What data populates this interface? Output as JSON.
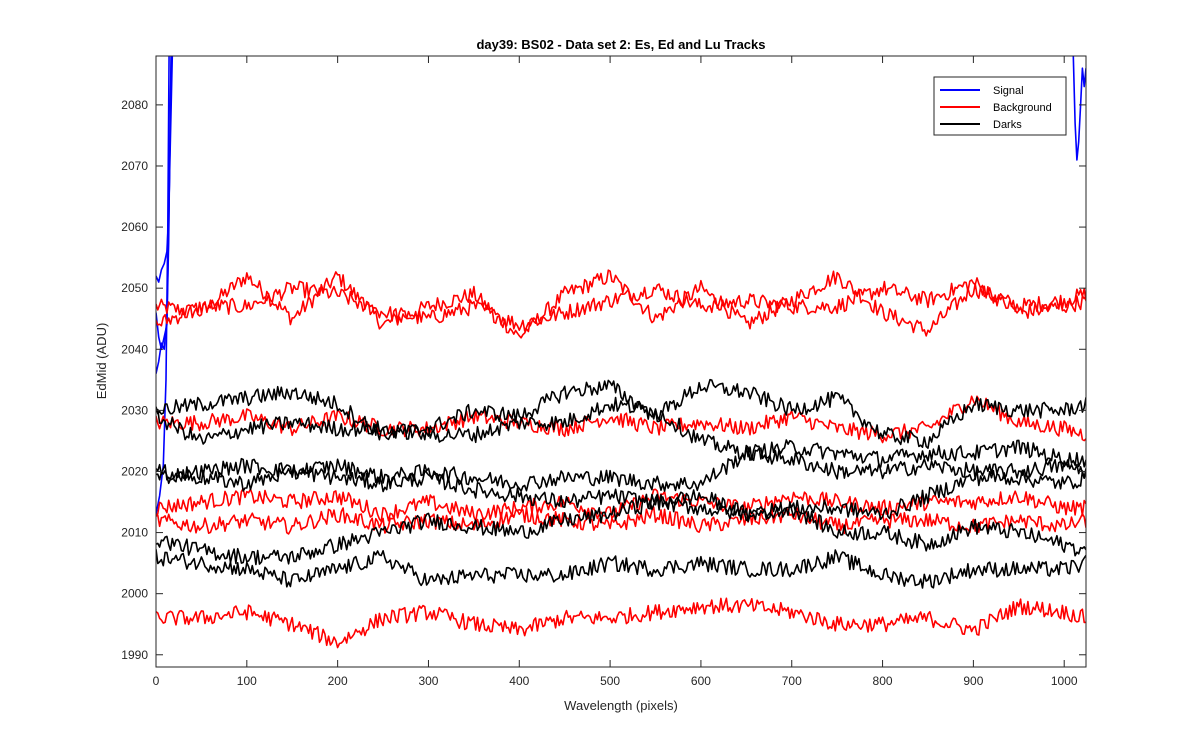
{
  "chart_data": {
    "type": "line",
    "title": "day39: BS02 - Data set 2: Es, Ed and Lu Tracks",
    "xlabel": "Wavelength (pixels)",
    "ylabel": "EdMid (ADU)",
    "xlim": [
      0,
      1024
    ],
    "ylim": [
      1988,
      2088
    ],
    "x_ticks": [
      0,
      100,
      200,
      300,
      400,
      500,
      600,
      700,
      800,
      900,
      1000
    ],
    "y_ticks": [
      1990,
      2000,
      2010,
      2020,
      2030,
      2040,
      2050,
      2060,
      2070,
      2080
    ],
    "grid": false,
    "legend_position": "top-right",
    "legend": [
      {
        "label": "Signal",
        "color": "#0000ff"
      },
      {
        "label": "Background",
        "color": "#ff0000"
      },
      {
        "label": "Darks",
        "color": "#000000"
      }
    ],
    "series": [
      {
        "legend_group": "Signal",
        "color": "#0000ff",
        "x": [
          0,
          3,
          6,
          9,
          12,
          14,
          16,
          18,
          20
        ],
        "y": [
          2052,
          2051,
          2053,
          2054,
          2056,
          2062,
          2075,
          2088,
          2100
        ]
      },
      {
        "legend_group": "Signal",
        "color": "#0000ff",
        "x": [
          0,
          3,
          6,
          9,
          12,
          14,
          16,
          18
        ],
        "y": [
          2036,
          2038,
          2041,
          2040,
          2045,
          2060,
          2080,
          2100
        ]
      },
      {
        "legend_group": "Signal",
        "color": "#0000ff",
        "x": [
          0,
          3,
          6,
          9,
          12,
          14,
          16,
          18
        ],
        "y": [
          2046,
          2042,
          2040,
          2042,
          2044,
          2058,
          2082,
          2100
        ]
      },
      {
        "legend_group": "Signal",
        "color": "#0000ff",
        "x": [
          0,
          4,
          8,
          11,
          13,
          15
        ],
        "y": [
          2013,
          2016,
          2021,
          2035,
          2060,
          2100
        ]
      },
      {
        "legend_group": "Signal",
        "color": "#0000ff",
        "x": [
          1008,
          1010,
          1012,
          1014,
          1016,
          1018,
          1020,
          1022,
          1024
        ],
        "y": [
          2100,
          2088,
          2077,
          2071,
          2074,
          2080,
          2086,
          2083,
          2086
        ]
      },
      {
        "legend_group": "Background",
        "color": "#ff0000",
        "x": [
          0,
          50,
          100,
          150,
          200,
          250,
          300,
          350,
          400,
          450,
          500,
          550,
          600,
          650,
          700,
          750,
          800,
          850,
          900,
          950,
          1000,
          1024
        ],
        "y": [
          2047,
          2046,
          2052,
          2045,
          2052,
          2044,
          2047,
          2049,
          2042,
          2049,
          2052,
          2045,
          2050,
          2044,
          2048,
          2052,
          2046,
          2043,
          2050,
          2047,
          2048,
          2049
        ]
      },
      {
        "legend_group": "Background",
        "color": "#ff0000",
        "x": [
          0,
          50,
          100,
          150,
          200,
          250,
          300,
          350,
          400,
          450,
          500,
          550,
          600,
          650,
          700,
          750,
          800,
          850,
          900,
          950,
          1000,
          1024
        ],
        "y": [
          2044,
          2047,
          2047,
          2050,
          2049,
          2046,
          2045,
          2047,
          2044,
          2046,
          2048,
          2050,
          2047,
          2048,
          2047,
          2047,
          2050,
          2048,
          2051,
          2046,
          2047,
          2048
        ]
      },
      {
        "legend_group": "Background",
        "color": "#ff0000",
        "x": [
          0,
          50,
          100,
          150,
          200,
          250,
          300,
          350,
          400,
          450,
          500,
          550,
          600,
          650,
          700,
          750,
          800,
          850,
          900,
          950,
          1000,
          1024
        ],
        "y": [
          2028,
          2028,
          2029,
          2027,
          2029,
          2027,
          2027,
          2029,
          2028,
          2027,
          2029,
          2027,
          2028,
          2027,
          2029,
          2027,
          2026,
          2027,
          2032,
          2028,
          2027,
          2026
        ]
      },
      {
        "legend_group": "Background",
        "color": "#ff0000",
        "x": [
          0,
          50,
          100,
          150,
          200,
          250,
          300,
          350,
          400,
          450,
          500,
          550,
          600,
          650,
          700,
          750,
          800,
          850,
          900,
          950,
          1000,
          1024
        ],
        "y": [
          2014,
          2015,
          2016,
          2015,
          2016,
          2013,
          2015,
          2013,
          2014,
          2015,
          2013,
          2016,
          2015,
          2014,
          2016,
          2015,
          2014,
          2015,
          2015,
          2016,
          2014,
          2014
        ]
      },
      {
        "legend_group": "Background",
        "color": "#ff0000",
        "x": [
          0,
          50,
          100,
          150,
          200,
          250,
          300,
          350,
          400,
          450,
          500,
          550,
          600,
          650,
          700,
          750,
          800,
          850,
          900,
          950,
          1000,
          1024
        ],
        "y": [
          2012,
          2011,
          2012,
          2011,
          2013,
          2011,
          2012,
          2011,
          2013,
          2012,
          2011,
          2013,
          2011,
          2012,
          2013,
          2011,
          2012,
          2012,
          2011,
          2012,
          2011,
          2012
        ]
      },
      {
        "legend_group": "Background",
        "color": "#ff0000",
        "x": [
          0,
          50,
          100,
          150,
          200,
          250,
          300,
          350,
          400,
          450,
          500,
          550,
          600,
          650,
          700,
          750,
          800,
          850,
          900,
          950,
          1000,
          1024
        ],
        "y": [
          1996,
          1996,
          1997,
          1995,
          1992,
          1996,
          1997,
          1995,
          1994,
          1996,
          1996,
          1997,
          1998,
          1998,
          1997,
          1995,
          1995,
          1996,
          1994,
          1998,
          1997,
          1996
        ]
      },
      {
        "legend_group": "Darks",
        "color": "#000000",
        "x": [
          0,
          50,
          100,
          150,
          200,
          250,
          300,
          350,
          400,
          450,
          500,
          550,
          600,
          650,
          700,
          750,
          800,
          850,
          900,
          950,
          1000,
          1024
        ],
        "y": [
          2030,
          2031,
          2032,
          2033,
          2031,
          2026,
          2027,
          2030,
          2029,
          2033,
          2034,
          2029,
          2034,
          2033,
          2030,
          2032,
          2026,
          2025,
          2031,
          2030,
          2030,
          2031
        ]
      },
      {
        "legend_group": "Darks",
        "color": "#000000",
        "x": [
          0,
          50,
          100,
          150,
          200,
          250,
          300,
          350,
          400,
          450,
          500,
          550,
          600,
          650,
          700,
          750,
          800,
          850,
          900,
          950,
          1000,
          1024
        ],
        "y": [
          2029,
          2025,
          2027,
          2028,
          2027,
          2027,
          2026,
          2026,
          2028,
          2028,
          2031,
          2030,
          2025,
          2023,
          2024,
          2023,
          2022,
          2023,
          2023,
          2024,
          2022,
          2022
        ]
      },
      {
        "legend_group": "Darks",
        "color": "#000000",
        "x": [
          0,
          50,
          100,
          150,
          200,
          250,
          300,
          350,
          400,
          450,
          500,
          550,
          600,
          650,
          700,
          750,
          800,
          850,
          900,
          950,
          1000,
          1024
        ],
        "y": [
          2020,
          2019,
          2018,
          2020,
          2021,
          2019,
          2020,
          2019,
          2018,
          2019,
          2019,
          2018,
          2018,
          2023,
          2022,
          2020,
          2020,
          2021,
          2020,
          2020,
          2021,
          2020
        ]
      },
      {
        "legend_group": "Darks",
        "color": "#000000",
        "x": [
          0,
          50,
          100,
          150,
          200,
          250,
          300,
          350,
          400,
          450,
          500,
          550,
          600,
          650,
          700,
          750,
          800,
          850,
          900,
          950,
          1000,
          1024
        ],
        "y": [
          2019,
          2020,
          2021,
          2020,
          2019,
          2018,
          2019,
          2017,
          2016,
          2015,
          2016,
          2015,
          2014,
          2013,
          2014,
          2014,
          2013,
          2016,
          2019,
          2019,
          2018,
          2019
        ]
      },
      {
        "legend_group": "Darks",
        "color": "#000000",
        "x": [
          0,
          50,
          100,
          150,
          200,
          250,
          300,
          350,
          400,
          450,
          500,
          550,
          600,
          650,
          700,
          750,
          800,
          850,
          900,
          950,
          1000,
          1024
        ],
        "y": [
          2009,
          2007,
          2006,
          2006,
          2008,
          2010,
          2012,
          2011,
          2010,
          2012,
          2013,
          2015,
          2016,
          2013,
          2014,
          2010,
          2010,
          2008,
          2011,
          2010,
          2008,
          2007
        ]
      },
      {
        "legend_group": "Darks",
        "color": "#000000",
        "x": [
          0,
          50,
          100,
          150,
          200,
          250,
          300,
          350,
          400,
          450,
          500,
          550,
          600,
          650,
          700,
          750,
          800,
          850,
          900,
          950,
          1000,
          1024
        ],
        "y": [
          2006,
          2005,
          2004,
          2002,
          2004,
          2006,
          2002,
          2003,
          2003,
          2003,
          2005,
          2004,
          2005,
          2004,
          2004,
          2006,
          2003,
          2002,
          2004,
          2004,
          2004,
          2005
        ]
      }
    ]
  }
}
